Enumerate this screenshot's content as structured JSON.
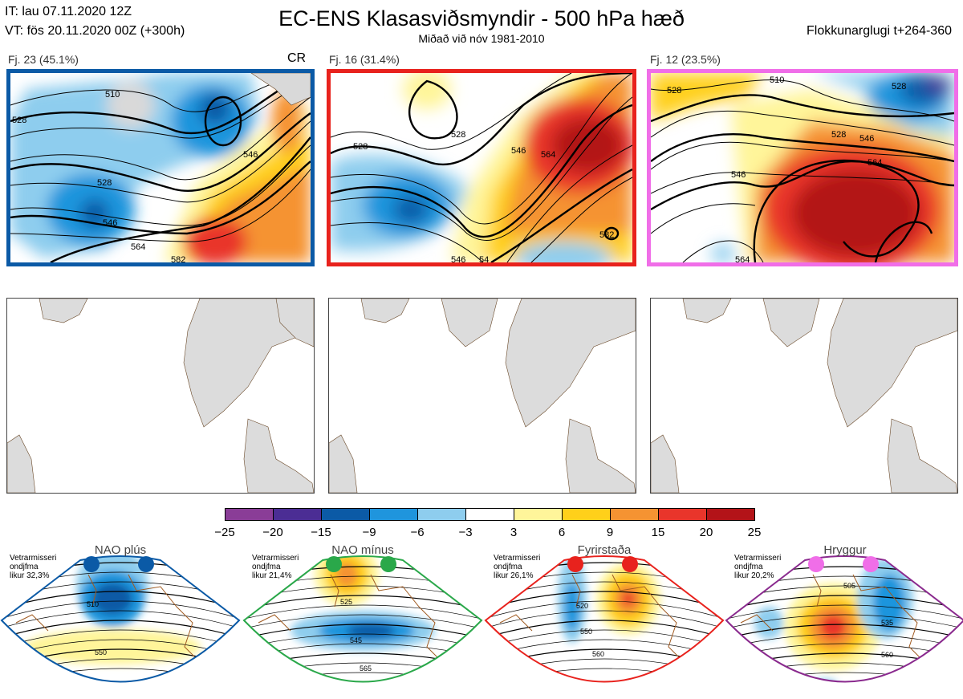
{
  "header": {
    "it": "IT: lau 07.11.2020 12Z",
    "vt": "VT: fös 20.11.2020 00Z  (+300h)",
    "title": "EC-ENS Klasasviðsmyndir - 500 hPa hæð",
    "subtitle": "Miðað við nóv 1981-2010",
    "window": "Flokkunarglugi t+264-360"
  },
  "clusters": [
    {
      "label": "Fj. 23 (45.1%)",
      "tag": "CR",
      "frame_color": "#0b5aa6",
      "contours": [
        "510",
        "528",
        "528",
        "546",
        "546",
        "564",
        "582"
      ]
    },
    {
      "label": "Fj. 16 (31.4%)",
      "tag": "",
      "frame_color": "#e8221d",
      "contours": [
        "528",
        "528",
        "546",
        "564",
        "546",
        "54",
        "582"
      ]
    },
    {
      "label": "Fj. 12 (23.5%)",
      "tag": "",
      "frame_color": "#f06ee8",
      "contours": [
        "510",
        "528",
        "528",
        "546",
        "546",
        "564",
        "564",
        "528"
      ]
    }
  ],
  "colorbar": {
    "ticks": [
      "−25",
      "−20",
      "−15",
      "−9",
      "−6",
      "−3",
      "3",
      "6",
      "9",
      "15",
      "20",
      "25"
    ],
    "colors": [
      "#8a3d97",
      "#4b2d94",
      "#0b5aa6",
      "#1f95dd",
      "#8ecdee",
      "#ffffff",
      "#fff59a",
      "#ffd01a",
      "#f59332",
      "#e9352b",
      "#b31318"
    ]
  },
  "regimes": [
    {
      "name": "NAO plús",
      "prob": [
        "Vetrarmisseri",
        "ondjfma",
        "likur 32,3%"
      ],
      "color": "#0b5aa6",
      "contours": [
        "510",
        "550"
      ]
    },
    {
      "name": "NAO mínus",
      "prob": [
        "Vetrarmisseri",
        "ondjfma",
        "likur 21,4%"
      ],
      "color": "#2aa84a",
      "contours": [
        "525",
        "545",
        "565"
      ]
    },
    {
      "name": "Fyrirstaða",
      "prob": [
        "Vetrarmisseri",
        "ondjfma",
        "likur 26,1%"
      ],
      "color": "#e8221d",
      "contours": [
        "520",
        "550",
        "560"
      ]
    },
    {
      "name": "Hryggur",
      "prob": [
        "Vetrarmisseri",
        "ondjfma",
        "likur 20,2%"
      ],
      "color": "#8a2a8e",
      "contours": [
        "505",
        "535",
        "560"
      ]
    }
  ]
}
